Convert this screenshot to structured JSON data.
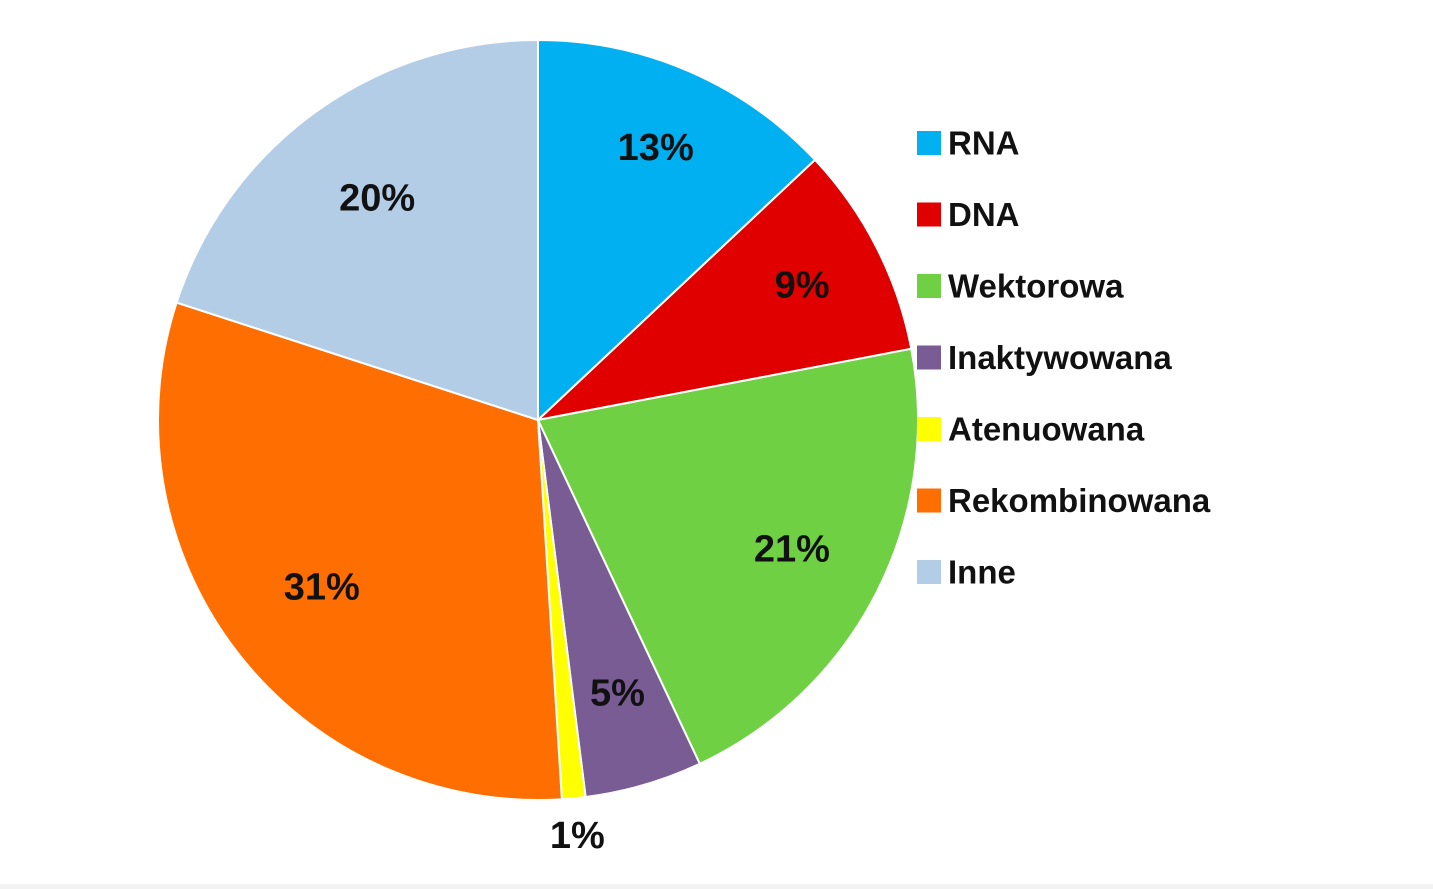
{
  "chart_data": {
    "type": "pie",
    "start_angle": "12 o'clock",
    "direction": "clockwise",
    "legend_position": "right",
    "slices": [
      {
        "name": "RNA",
        "value": 13,
        "label": "13%",
        "color": "#00B0F0"
      },
      {
        "name": "DNA",
        "value": 9,
        "label": "9%",
        "color": "#E00000"
      },
      {
        "name": "Wektorowa",
        "value": 21,
        "label": "21%",
        "color": "#70D044"
      },
      {
        "name": "Inaktywowana",
        "value": 5,
        "label": "5%",
        "color": "#7A5C95"
      },
      {
        "name": "Atenuowana",
        "value": 1,
        "label": "1%",
        "color": "#FFFF00"
      },
      {
        "name": "Rekombinowana",
        "value": 31,
        "label": "31%",
        "color": "#FF6E00"
      },
      {
        "name": "Inne",
        "value": 20,
        "label": "20%",
        "color": "#B4CDE6"
      }
    ]
  }
}
